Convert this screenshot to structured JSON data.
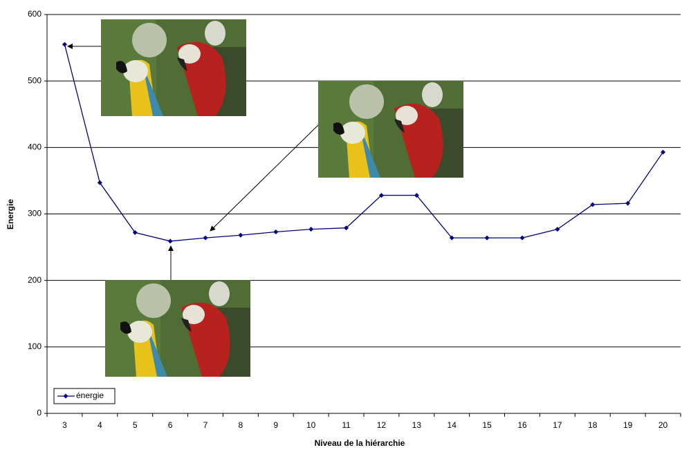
{
  "chart_data": {
    "type": "line",
    "x_label": "Niveau de la hiérarchie",
    "y_label": "Energie",
    "categories": [
      3,
      4,
      5,
      6,
      7,
      8,
      9,
      10,
      11,
      12,
      13,
      14,
      15,
      16,
      17,
      18,
      19,
      20
    ],
    "series": [
      {
        "name": "énergie",
        "color": "#000080",
        "values": [
          555,
          347,
          272,
          259,
          264,
          268,
          273,
          277,
          279,
          328,
          328,
          264,
          264,
          264,
          277,
          314,
          316,
          393
        ]
      }
    ],
    "ylim": [
      0,
      600
    ],
    "yticks": [
      0,
      100,
      200,
      300,
      400,
      500,
      600
    ],
    "grid": true,
    "legend": "lower left"
  }
}
